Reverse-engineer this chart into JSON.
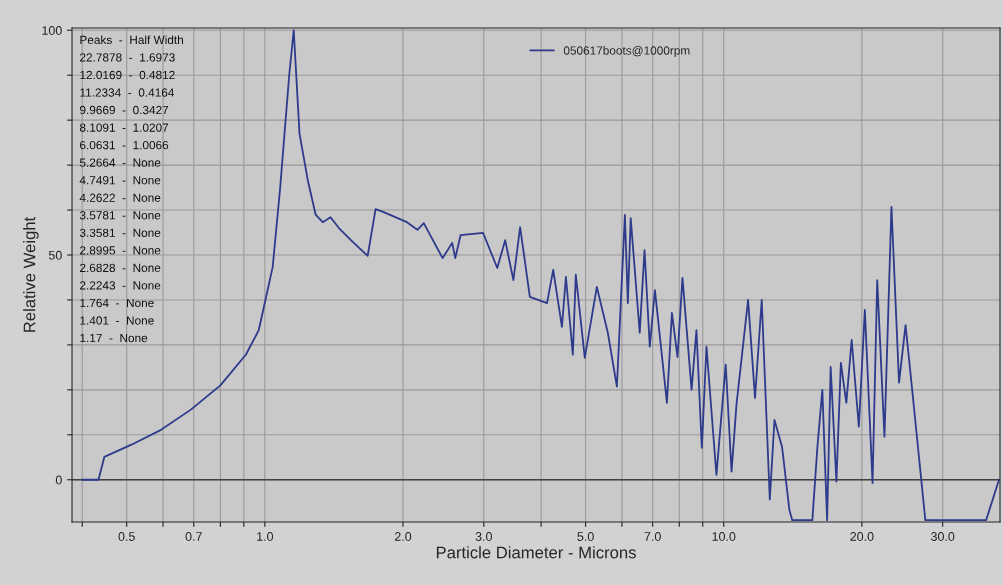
{
  "chart_data": {
    "type": "line",
    "xlabel": "Particle Diameter - Microns",
    "ylabel": "Relative Weight",
    "log": "x",
    "grid": true,
    "legend": "top",
    "xlim": [
      0.38,
      40
    ],
    "ylim": [
      -9.4,
      100.5
    ],
    "xticks": [
      {
        "value": 0.4,
        "label": null
      },
      {
        "value": 0.5,
        "label": "0.5"
      },
      {
        "value": 0.6,
        "label": null
      },
      {
        "value": 0.7,
        "label": "0.7"
      },
      {
        "value": 0.8,
        "label": null
      },
      {
        "value": 0.9,
        "label": null
      },
      {
        "value": 1,
        "label": "1.0"
      },
      {
        "value": 2,
        "label": "2.0"
      },
      {
        "value": 3,
        "label": "3.0"
      },
      {
        "value": 4,
        "label": null
      },
      {
        "value": 5,
        "label": "5.0"
      },
      {
        "value": 6,
        "label": null
      },
      {
        "value": 7,
        "label": "7.0"
      },
      {
        "value": 8,
        "label": null
      },
      {
        "value": 9,
        "label": null
      },
      {
        "value": 10,
        "label": "10.0"
      },
      {
        "value": 20,
        "label": "20.0"
      },
      {
        "value": 30,
        "label": "30.0"
      }
    ],
    "yticks": [
      0,
      {
        "value": 10,
        "label": null
      },
      {
        "value": 20,
        "label": null
      },
      {
        "value": 30,
        "label": null
      },
      {
        "value": 40,
        "label": null
      },
      50,
      {
        "value": 60,
        "label": null
      },
      {
        "value": 70,
        "label": null
      },
      {
        "value": 80,
        "label": null
      },
      {
        "value": 90,
        "label": null
      },
      100
    ],
    "ref_lines": [
      {
        "axis": "y",
        "value": 0,
        "color": "#404040"
      }
    ],
    "annotations": [
      "Peaks  -  Half Width",
      "22.7878  -  1.6973",
      "12.0169  -  0.4812",
      "11.2334  -  0.4164",
      "9.9669  -  0.3427",
      "8.1091  -  1.0207",
      "6.0631  -  1.0066",
      "5.2664  -  None",
      "4.7491  -  None",
      "4.2622  -  None",
      "3.5781  -  None",
      "3.3581  -  None",
      "2.8995  -  None",
      "2.6828  -  None",
      "2.2243  -  None",
      "1.764  -  None",
      "1.401  -  None",
      "1.17  -  None"
    ],
    "series": [
      {
        "name": "050617boots@1000rpm",
        "color": "#2e3a8c",
        "x": [
          0.4,
          0.434,
          0.447,
          0.512,
          0.594,
          0.69,
          0.8,
          0.909,
          0.97,
          1.04,
          1.08,
          1.13,
          1.156,
          1.19,
          1.24,
          1.29,
          1.337,
          1.39,
          1.45,
          1.54,
          1.675,
          1.743,
          1.81,
          2.04,
          2.15,
          2.22,
          2.44,
          2.56,
          2.6,
          2.67,
          2.99,
          3.21,
          3.34,
          3.48,
          3.6,
          3.78,
          4.12,
          4.25,
          4.44,
          4.53,
          4.69,
          4.76,
          4.98,
          5.29,
          5.59,
          5.85,
          6.09,
          6.18,
          6.27,
          6.56,
          6.72,
          6.9,
          7.08,
          7.52,
          7.71,
          7.93,
          8.13,
          8.51,
          8.72,
          8.96,
          9.17,
          9.64,
          10.1,
          10.4,
          10.66,
          11.3,
          11.7,
          12.1,
          12.6,
          12.9,
          13.4,
          13.9,
          14.1,
          15.6,
          16.0,
          16.4,
          16.8,
          17.1,
          17.6,
          18.0,
          18.5,
          19.0,
          19.7,
          20.3,
          21.1,
          21.6,
          22.4,
          23.2,
          24.1,
          24.9,
          25.7,
          27.5,
          37.3,
          39.8
        ],
        "values": [
          0,
          0,
          5.1,
          7.8,
          11.1,
          15.6,
          21,
          27.8,
          33.3,
          47.3,
          65,
          90,
          100,
          77,
          66.7,
          59,
          57.3,
          58.4,
          56,
          53.3,
          49.8,
          60.2,
          59.6,
          57.3,
          55.6,
          57.1,
          49.3,
          52.7,
          49.3,
          54.4,
          54.9,
          47.1,
          53.3,
          44.4,
          56.2,
          40.7,
          39.3,
          46.7,
          34,
          45.1,
          27.8,
          45.6,
          27.1,
          42.9,
          32.7,
          20.7,
          58.9,
          39.3,
          58.2,
          32.7,
          51.1,
          29.6,
          42.2,
          17.1,
          37.1,
          27.3,
          44.9,
          20,
          33.3,
          7.1,
          29.6,
          1.1,
          25.6,
          1.8,
          16.7,
          40,
          18.2,
          40,
          -4.4,
          13.3,
          7.3,
          -6.7,
          -9,
          -9,
          7.3,
          20,
          -9,
          25.1,
          -0.4,
          26,
          17.1,
          31.1,
          11.8,
          37.8,
          -0.7,
          44.4,
          9.6,
          60.7,
          21.6,
          34.4,
          20.7,
          -9,
          -9,
          0
        ]
      }
    ]
  }
}
